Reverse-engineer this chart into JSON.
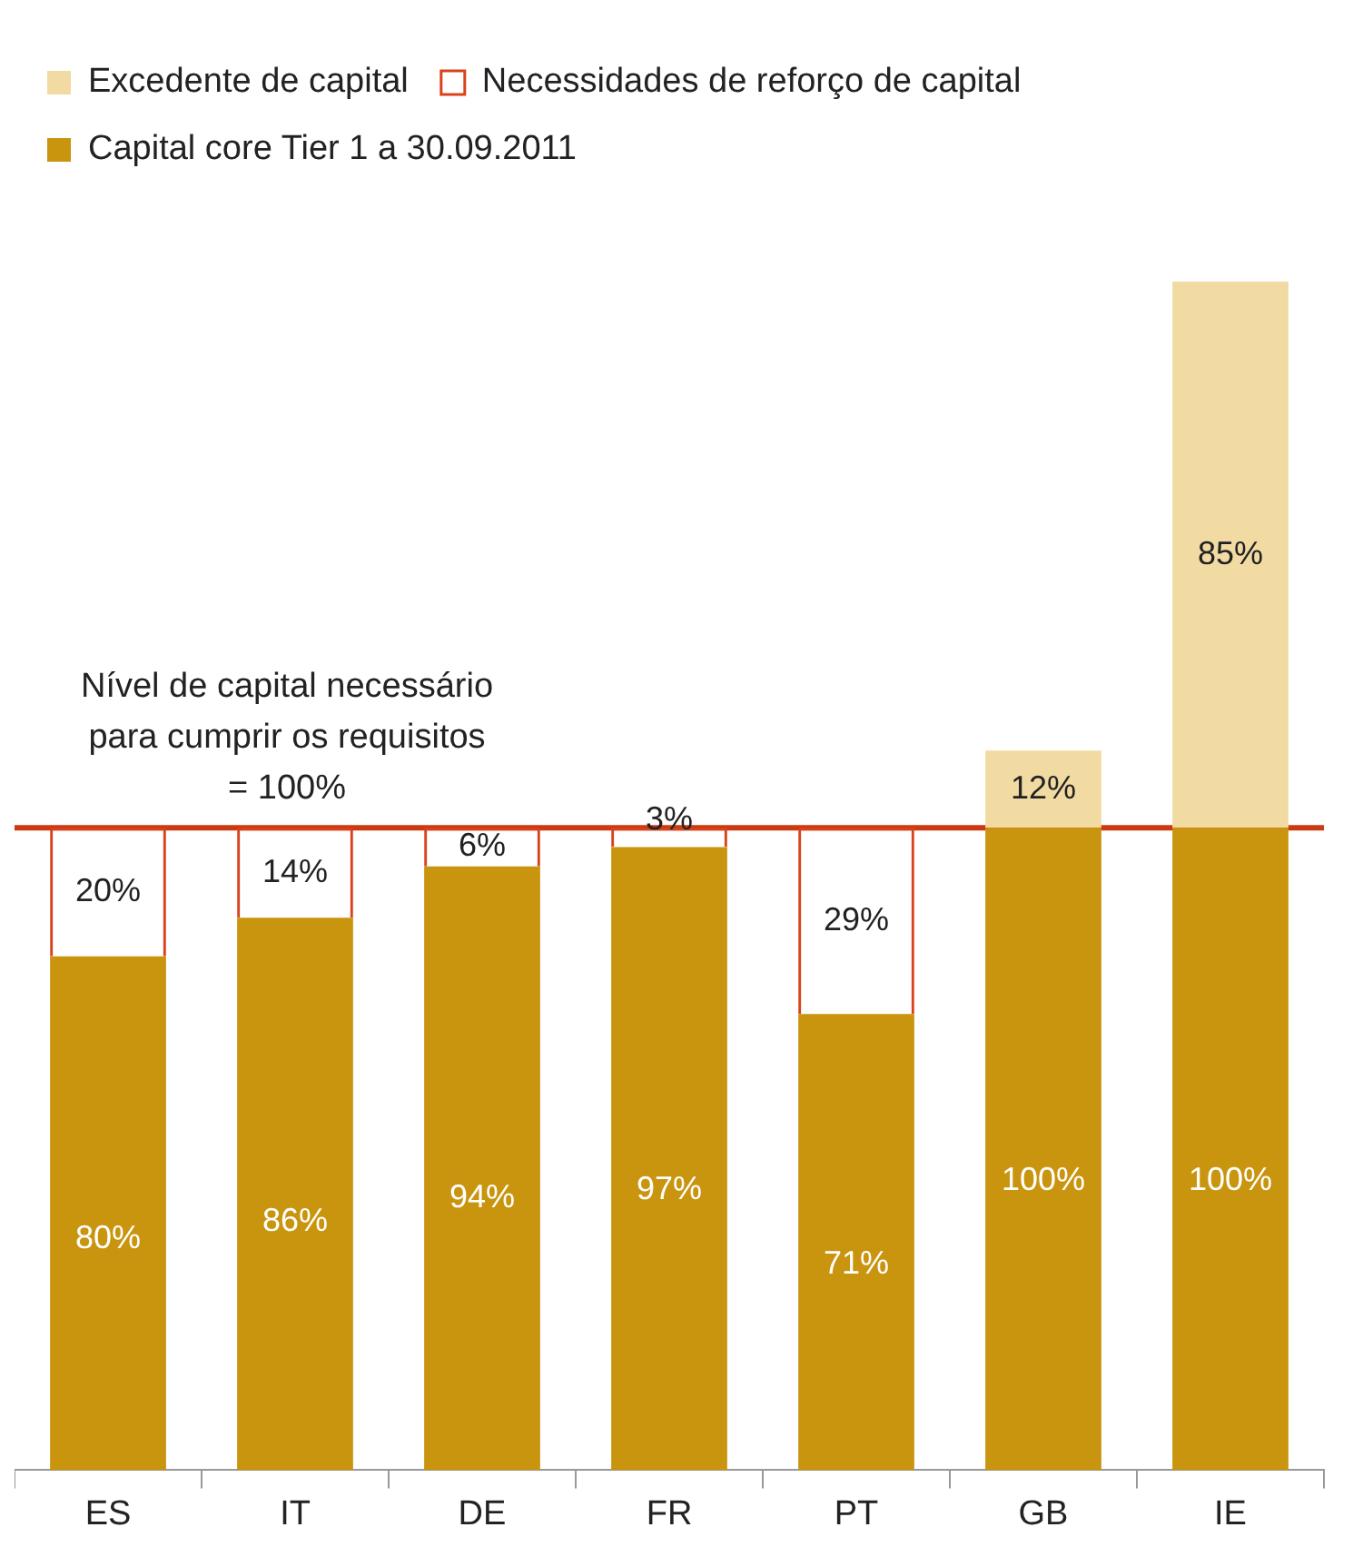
{
  "chart_data": {
    "type": "bar",
    "stacked": true,
    "categories": [
      "ES",
      "IT",
      "DE",
      "FR",
      "PT",
      "GB",
      "IE"
    ],
    "series": [
      {
        "name": "Capital core Tier 1 a 30.09.2011",
        "color": "#c9940e",
        "values": [
          80,
          86,
          94,
          97,
          71,
          100,
          100
        ],
        "value_labels": [
          "80%",
          "86%",
          "94%",
          "97%",
          "71%",
          "100%",
          "100%"
        ]
      },
      {
        "name": "Necessidades de reforço de capital",
        "color": "#d9421c",
        "line_style": "dashed",
        "values": [
          20,
          14,
          6,
          3,
          29,
          null,
          null
        ],
        "value_labels": [
          "20%",
          "14%",
          "6%",
          "3%",
          "29%",
          null,
          null
        ]
      },
      {
        "name": "Excedente de capital",
        "color": "#f1dba2",
        "values": [
          null,
          null,
          null,
          null,
          null,
          12,
          85
        ],
        "value_labels": [
          null,
          null,
          null,
          null,
          null,
          "12%",
          "85%"
        ]
      }
    ],
    "legend": "top left",
    "tick_labels": "x",
    "grid": false,
    "ref_lines": [
      {
        "axis": "y",
        "value": 100,
        "label": "Nível de capital necessário\npara cumprir os requisitos\n= 100%",
        "color": "#cc3a12"
      }
    ]
  }
}
